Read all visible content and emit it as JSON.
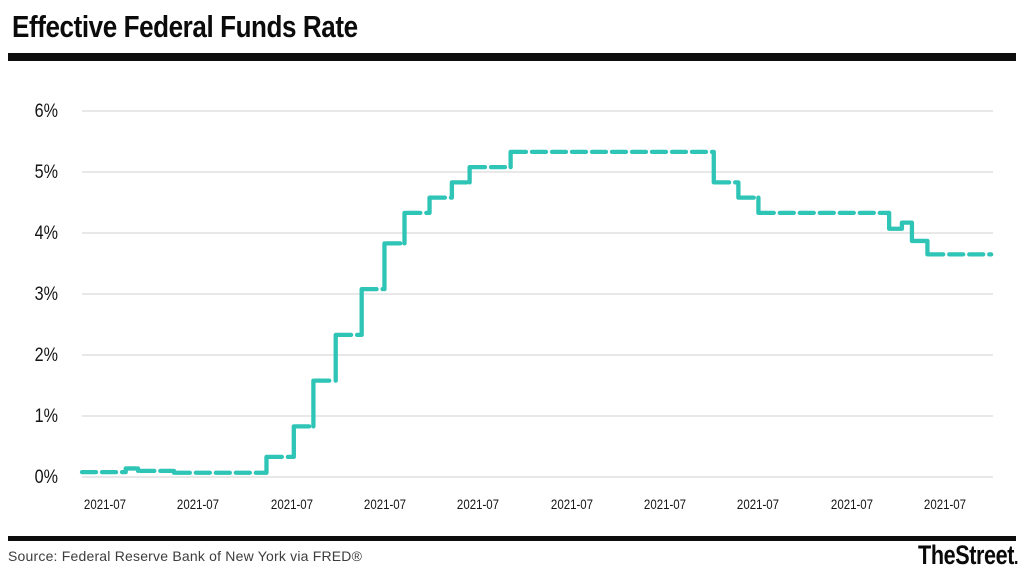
{
  "header": {
    "title": "Effective Federal Funds Rate"
  },
  "footer": {
    "source": "Source: Federal Reserve Bank of New York via FRED®",
    "brand": "TheStreet",
    "brand_suffix": "."
  },
  "chart_data": {
    "type": "line",
    "variant": "step",
    "title": "Effective Federal Funds Rate",
    "xlabel": "",
    "ylabel": "",
    "unit": "%",
    "ylim": [
      0,
      6
    ],
    "grid": true,
    "legend_position": "none",
    "line_color": "#2EC4B6",
    "gridline_color": "#d9d9d9",
    "y_ticks": [
      {
        "value": 0,
        "label": "0%"
      },
      {
        "value": 1,
        "label": "1%"
      },
      {
        "value": 2,
        "label": "2%"
      },
      {
        "value": 3,
        "label": "3%"
      },
      {
        "value": 4,
        "label": "4%"
      },
      {
        "value": 5,
        "label": "5%"
      },
      {
        "value": 6,
        "label": "6%"
      }
    ],
    "x_ticks": [
      "2021-07",
      "2021-07",
      "2021-07",
      "2021-07",
      "2021-07",
      "2021-07",
      "2021-07",
      "2021-07",
      "2021-07",
      "2021-07"
    ],
    "series": [
      {
        "name": "Effective Federal Funds Rate",
        "levels": [
          {
            "from": 0.0,
            "to": 0.046,
            "value": 0.08
          },
          {
            "from": 0.05,
            "to": 0.059,
            "value": 0.14
          },
          {
            "from": 0.064,
            "to": 0.099,
            "value": 0.1
          },
          {
            "from": 0.103,
            "to": 0.201,
            "value": 0.07
          },
          {
            "from": 0.204,
            "to": 0.231,
            "value": 0.33
          },
          {
            "from": 0.234,
            "to": 0.252,
            "value": 0.83
          },
          {
            "from": 0.256,
            "to": 0.277,
            "value": 1.58
          },
          {
            "from": 0.28,
            "to": 0.306,
            "value": 2.33
          },
          {
            "from": 0.308,
            "to": 0.33,
            "value": 3.08
          },
          {
            "from": 0.334,
            "to": 0.352,
            "value": 3.83
          },
          {
            "from": 0.356,
            "to": 0.38,
            "value": 4.33
          },
          {
            "from": 0.383,
            "to": 0.405,
            "value": 4.58
          },
          {
            "from": 0.407,
            "to": 0.424,
            "value": 4.83
          },
          {
            "from": 0.427,
            "to": 0.469,
            "value": 5.08
          },
          {
            "from": 0.472,
            "to": 0.692,
            "value": 5.33
          },
          {
            "from": 0.695,
            "to": 0.719,
            "value": 4.83
          },
          {
            "from": 0.722,
            "to": 0.741,
            "value": 4.58
          },
          {
            "from": 0.744,
            "to": 0.885,
            "value": 4.33
          },
          {
            "from": 0.887,
            "to": 0.899,
            "value": 4.07
          },
          {
            "from": 0.901,
            "to": 0.91,
            "value": 4.17
          },
          {
            "from": 0.912,
            "to": 0.926,
            "value": 3.87
          },
          {
            "from": 0.93,
            "to": 0.998,
            "value": 3.65
          }
        ]
      }
    ]
  }
}
